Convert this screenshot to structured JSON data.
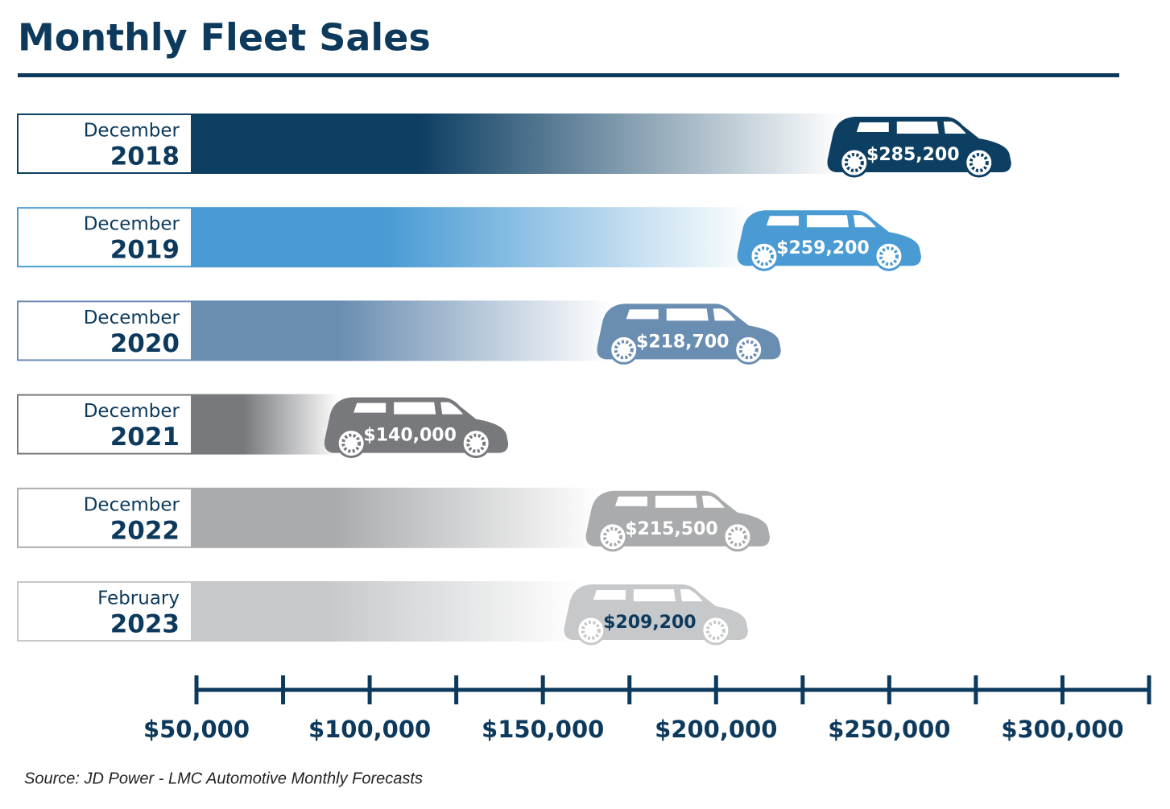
{
  "chart_data": {
    "type": "bar",
    "title": "Monthly Fleet Sales",
    "categories": [
      [
        "December",
        "2018"
      ],
      [
        "December",
        "2019"
      ],
      [
        "December",
        "2020"
      ],
      [
        "December",
        "2021"
      ],
      [
        "December",
        "2022"
      ],
      [
        "February",
        "2023"
      ]
    ],
    "values": [
      285200,
      259200,
      218700,
      140000,
      215500,
      209200
    ],
    "value_labels": [
      "$285,200",
      "$259,200",
      "$218,700",
      "$140,000",
      "$215,500",
      "$209,200"
    ],
    "colors": [
      "#0d3f63",
      "#4a9bd4",
      "#6a8db2",
      "#77797c",
      "#a9abad",
      "#c6c8ca"
    ],
    "label_colors": [
      "#ffffff",
      "#ffffff",
      "#ffffff",
      "#ffffff",
      "#ffffff",
      "#0d3a5c"
    ],
    "xlim": [
      50000,
      325000
    ],
    "xticks": [
      {
        "value": 50000,
        "label": "$50,000"
      },
      {
        "value": 75000,
        "label": null
      },
      {
        "value": 100000,
        "label": "$100,000"
      },
      {
        "value": 125000,
        "label": null
      },
      {
        "value": 150000,
        "label": "$150,000"
      },
      {
        "value": 175000,
        "label": null
      },
      {
        "value": 200000,
        "label": "$200,000"
      },
      {
        "value": 225000,
        "label": null
      },
      {
        "value": 250000,
        "label": "$250,000"
      },
      {
        "value": 275000,
        "label": null
      },
      {
        "value": 300000,
        "label": "$300,000"
      },
      {
        "value": 325000,
        "label": null
      }
    ],
    "source": "Source:  JD Power - LMC Automotive Monthly Forecasts"
  }
}
